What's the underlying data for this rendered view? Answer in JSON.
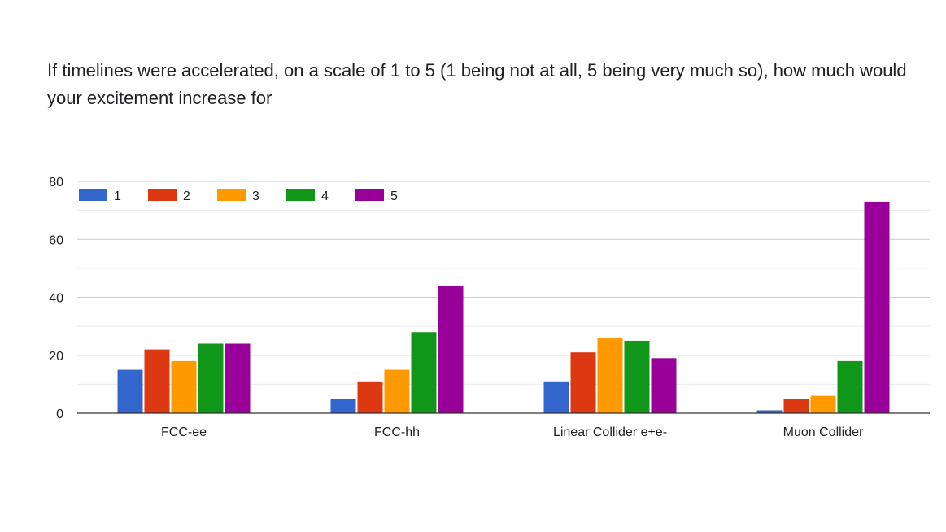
{
  "question": "If timelines were accelerated, on a scale of 1 to 5 (1 being not at all, 5 being very much so), how much would your excitement increase for",
  "chart_data": {
    "type": "bar",
    "title": "If timelines were accelerated, on a scale of 1 to 5 (1 being not at all, 5 being very much so), how much would your excitement increase for",
    "xlabel": "",
    "ylabel": "",
    "ylim": [
      0,
      80
    ],
    "yticks": [
      "0",
      "20",
      "40",
      "60",
      "80"
    ],
    "grid": true,
    "legend_position": "top-left",
    "categories": [
      "FCC-ee",
      "FCC-hh",
      "Linear Collider e+e-",
      "Muon Collider"
    ],
    "series": [
      {
        "name": "1",
        "color": "#3366cc",
        "values": [
          15,
          5,
          11,
          1
        ]
      },
      {
        "name": "2",
        "color": "#dc3912",
        "values": [
          22,
          11,
          21,
          5
        ]
      },
      {
        "name": "3",
        "color": "#ff9900",
        "values": [
          18,
          15,
          26,
          6
        ]
      },
      {
        "name": "4",
        "color": "#109618",
        "values": [
          24,
          28,
          25,
          18
        ]
      },
      {
        "name": "5",
        "color": "#990099",
        "values": [
          24,
          44,
          19,
          73
        ]
      }
    ]
  }
}
